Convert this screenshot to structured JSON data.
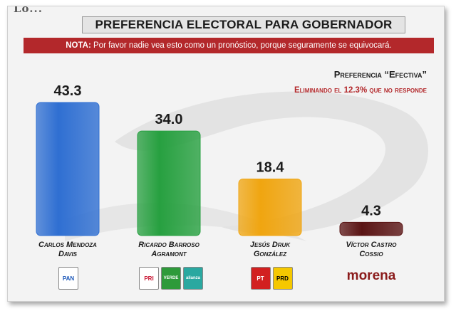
{
  "header": {
    "title": "PREFERENCIA ELECTORAL PARA GOBERNADOR",
    "note_prefix": "NOTA:",
    "note_text": " Por favor nadie vea esto como un pronóstico, porque seguramente se equivocará.",
    "subtitle": "Preferencia “Efectiva”",
    "subnote": "Eliminando el 12.3% que no responde",
    "source_logo": "Lo..."
  },
  "chart_data": {
    "type": "bar",
    "categories": [
      "Carlos Mendoza Davis",
      "Ricardo Barroso Agramont",
      "Jesús Druk González",
      "Víctor Castro Cossio"
    ],
    "category_lines": [
      [
        "Carlos Mendoza",
        "Davis"
      ],
      [
        "Ricardo Barroso",
        "Agramont"
      ],
      [
        "Jesús Druk",
        "González"
      ],
      [
        "Víctor Castro",
        "Cossio"
      ]
    ],
    "values": [
      43.3,
      34.0,
      18.4,
      4.3
    ],
    "value_labels": [
      "43.3",
      "34.0",
      "18.4",
      "4.3"
    ],
    "colors": [
      "#2f6fd2",
      "#27a040",
      "#f0a510",
      "#5a1414"
    ],
    "ylim": [
      0,
      50
    ],
    "grid": false,
    "title": "PREFERENCIA ELECTORAL PARA GOBERNADOR",
    "xlabel": "",
    "ylabel": ""
  },
  "logos": [
    [
      {
        "name": "pan-logo",
        "text": "PAN",
        "color": "#1a56b8",
        "bg": "#ffffff"
      }
    ],
    [
      {
        "name": "pri-logo",
        "text": "PRI",
        "color": "#c8102e",
        "bg": "#ffffff"
      },
      {
        "name": "verde-logo",
        "text": "VERDE",
        "color": "#ffffff",
        "bg": "#2e9a3a"
      },
      {
        "name": "alianza-logo",
        "text": "alianza",
        "color": "#ffffff",
        "bg": "#2aa8a0"
      }
    ],
    [
      {
        "name": "pt-logo",
        "text": "PT",
        "color": "#ffffff",
        "bg": "#d22020"
      },
      {
        "name": "prd-logo",
        "text": "PRD",
        "color": "#000000",
        "bg": "#f5c800"
      }
    ],
    [
      {
        "name": "morena-logo",
        "text": "morena",
        "color": "#8a1a1a",
        "bg": "transparent"
      }
    ]
  ]
}
